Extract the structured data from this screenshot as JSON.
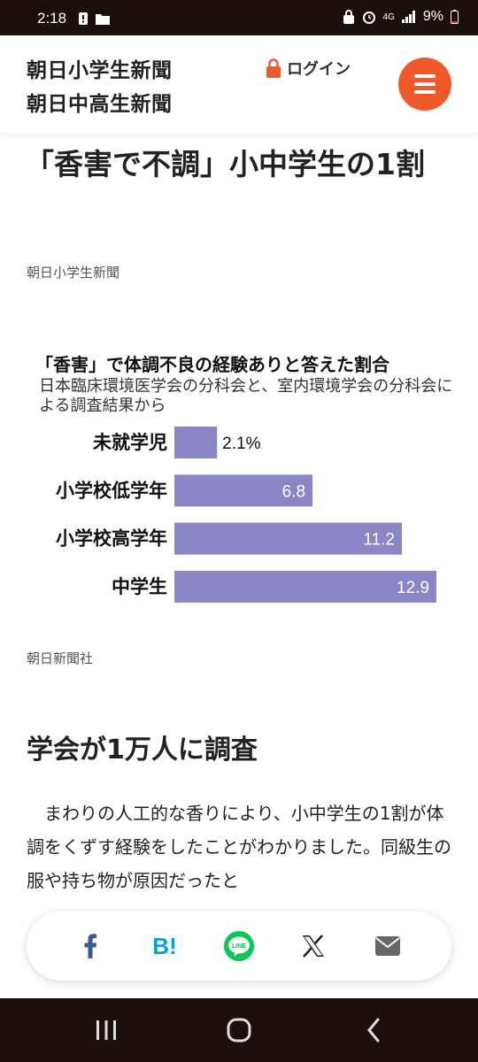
{
  "status_bar": {
    "time": "2:18",
    "battery": "9%",
    "network": "4G"
  },
  "header": {
    "logo_primary": "朝日小学生新聞",
    "logo_secondary": "朝日中高生新聞",
    "login_label": "ログイン"
  },
  "article": {
    "title": "「香害で不調」小中学生の1割",
    "credit_top": "朝日小学生新聞",
    "credit_bottom": "朝日新聞社",
    "subheading": "学会が1万人に調査",
    "body": "　まわりの人工的な香りにより、小中学生の1割が体調をくずす経験をしたことがわかりました。同級生の服や持ち物が原因だったと"
  },
  "chart_data": {
    "type": "bar",
    "title": "「香害」で体調不良の経験ありと答えた割合",
    "subtitle": "日本臨床環境医学会の分科会と、室内環境学会の分科会による調査結果から",
    "categories": [
      "未就学児",
      "小学校低学年",
      "小学校高学年",
      "中学生"
    ],
    "values": [
      2.1,
      6.8,
      11.2,
      12.9
    ],
    "value_labels": [
      "2.1%",
      "6.8",
      "11.2",
      "12.9"
    ],
    "orientation": "horizontal",
    "bar_color": "#8a85c4",
    "grid": false,
    "legend": "none"
  },
  "share": {
    "items": [
      "facebook-icon",
      "hatena-bookmark-icon",
      "line-icon",
      "x-icon",
      "mail-icon"
    ],
    "hatena_label": "B!",
    "line_label": "LINE"
  },
  "nav": {
    "items": [
      "recent-apps-icon",
      "home-icon",
      "back-icon"
    ]
  },
  "colors": {
    "accent": "#f05a2a",
    "logo_red": "#e43c2a",
    "system_bar": "#1b0f0c",
    "facebook": "#3b5998",
    "hatena": "#00a4de",
    "line": "#06c755"
  }
}
